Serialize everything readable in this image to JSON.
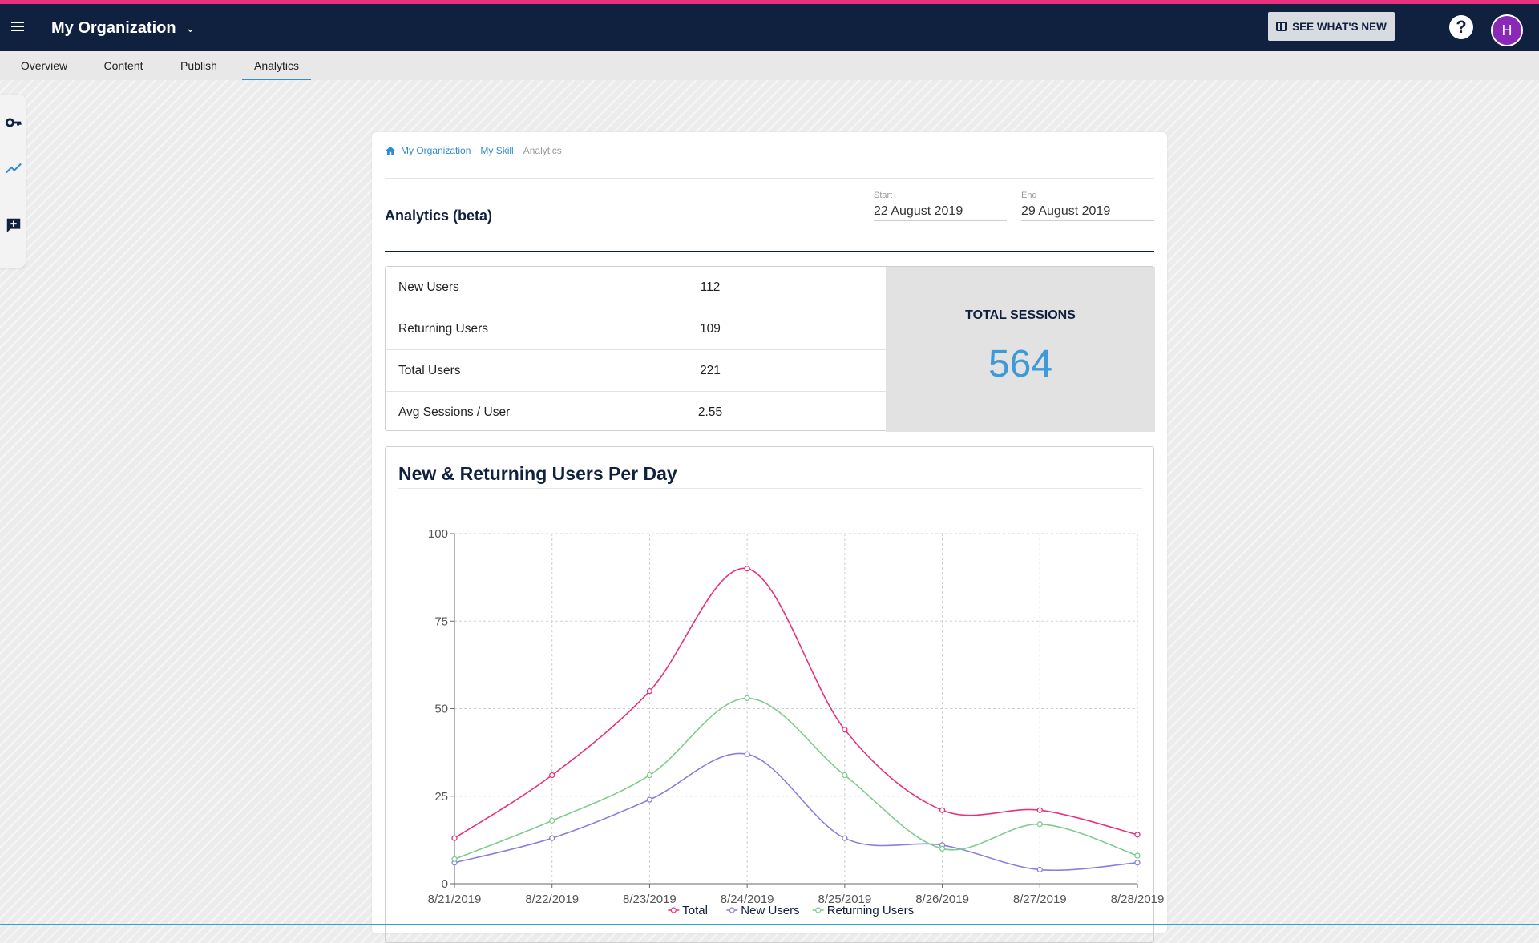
{
  "header": {
    "org_name": "My Organization",
    "whats_new_label": "SEE WHAT'S NEW",
    "help_glyph": "?",
    "avatar_initial": "H",
    "colors": {
      "bar": "#10213f",
      "accent_stripe": "#e8307f",
      "avatar": "#8a28b8"
    }
  },
  "tabs": [
    {
      "label": "Overview"
    },
    {
      "label": "Content"
    },
    {
      "label": "Publish"
    },
    {
      "label": "Analytics",
      "active": true
    }
  ],
  "side_rail": {
    "icons": [
      "key-icon",
      "trend-line-icon",
      "add-comment-icon"
    ]
  },
  "breadcrumb": {
    "home_icon": "home-icon",
    "items": [
      "My Organization",
      "My Skill"
    ],
    "current": "Analytics"
  },
  "page": {
    "title": "Analytics (beta)",
    "start": {
      "label": "Start",
      "value": "22 August 2019"
    },
    "end": {
      "label": "End",
      "value": "29 August 2019"
    }
  },
  "stats": {
    "rows": [
      {
        "label": "New Users",
        "value": "112"
      },
      {
        "label": "Returning Users",
        "value": "109"
      },
      {
        "label": "Total Users",
        "value": "221"
      },
      {
        "label": "Avg Sessions / User",
        "value": "2.55"
      }
    ],
    "sessions_title": "TOTAL SESSIONS",
    "sessions_value": "564"
  },
  "chart_title": "New & Returning Users Per Day",
  "chart_data": {
    "type": "line",
    "title": "New & Returning Users Per Day",
    "xlabel": "",
    "ylabel": "",
    "categories": [
      "8/21/2019",
      "8/22/2019",
      "8/23/2019",
      "8/24/2019",
      "8/25/2019",
      "8/26/2019",
      "8/27/2019",
      "8/28/2019"
    ],
    "series": [
      {
        "name": "Total",
        "color": "#e8307f",
        "values": [
          13,
          31,
          55,
          90,
          44,
          21,
          21,
          14
        ]
      },
      {
        "name": "New Users",
        "color": "#8c7fdc",
        "values": [
          6,
          13,
          24,
          37,
          13,
          11,
          4,
          6
        ]
      },
      {
        "name": "Returning Users",
        "color": "#7fcc8f",
        "values": [
          7,
          18,
          31,
          53,
          31,
          10,
          17,
          8
        ]
      }
    ],
    "ylim": [
      0,
      100
    ],
    "yticks": [
      0,
      25,
      50,
      75,
      100
    ],
    "grid": true,
    "legend": "bottom"
  }
}
